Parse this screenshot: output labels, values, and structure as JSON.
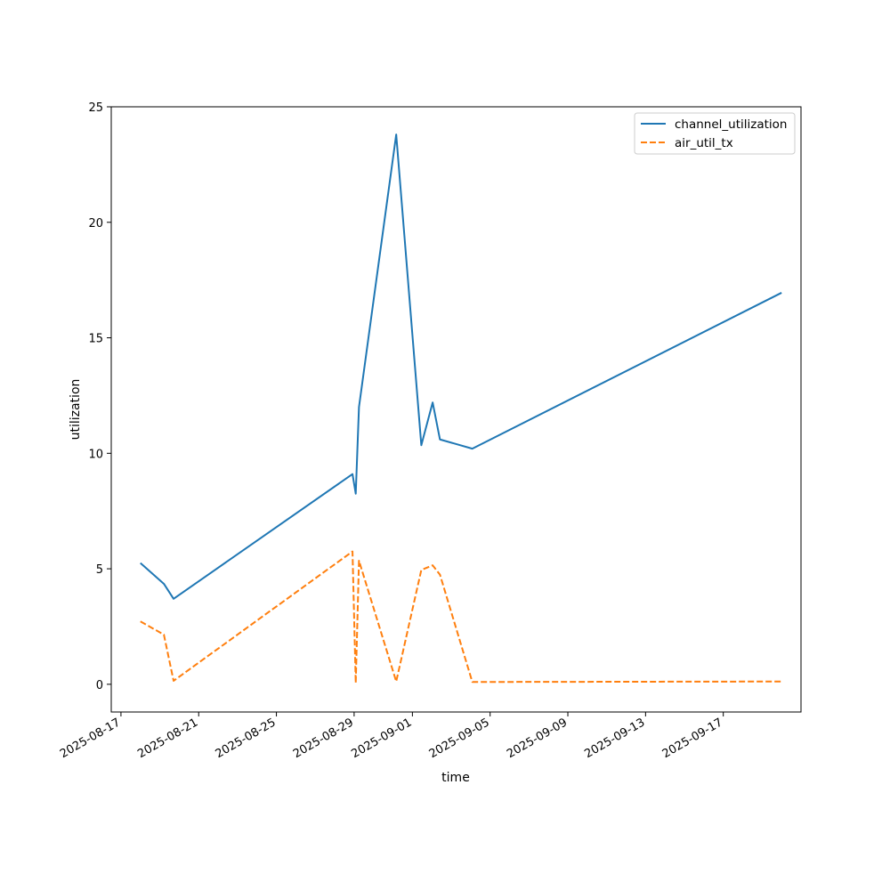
{
  "chart_data": {
    "type": "line",
    "xlabel": "time",
    "ylabel": "utilization",
    "xlim": [
      "2025-08-16T12:00",
      "2025-09-21T00:00"
    ],
    "ylim": [
      -1.2,
      25
    ],
    "x_ticks": [
      "2025-08-17",
      "2025-08-21",
      "2025-08-25",
      "2025-08-29",
      "2025-09-01",
      "2025-09-05",
      "2025-09-09",
      "2025-09-13",
      "2025-09-17"
    ],
    "y_ticks": [
      0,
      5,
      10,
      15,
      20,
      25
    ],
    "legend_position": "top-right",
    "grid": false,
    "series": [
      {
        "name": "channel_utilization",
        "color": "#1f77b4",
        "style": "solid",
        "points": [
          {
            "x": "2025-08-18T00:00",
            "y": 5.25
          },
          {
            "x": "2025-08-19T05:00",
            "y": 4.35
          },
          {
            "x": "2025-08-19T17:00",
            "y": 3.7
          },
          {
            "x": "2025-08-28T22:00",
            "y": 9.1
          },
          {
            "x": "2025-08-29T02:00",
            "y": 8.25
          },
          {
            "x": "2025-08-29T06:00",
            "y": 12.0
          },
          {
            "x": "2025-08-31T04:00",
            "y": 23.8
          },
          {
            "x": "2025-09-01T11:00",
            "y": 10.35
          },
          {
            "x": "2025-09-02T01:00",
            "y": 12.2
          },
          {
            "x": "2025-09-02T10:00",
            "y": 10.6
          },
          {
            "x": "2025-09-04T02:00",
            "y": 10.2
          },
          {
            "x": "2025-09-20T00:00",
            "y": 16.95
          }
        ]
      },
      {
        "name": "air_util_tx",
        "color": "#ff7f0e",
        "style": "dashed",
        "points": [
          {
            "x": "2025-08-18T00:00",
            "y": 2.72
          },
          {
            "x": "2025-08-19T05:00",
            "y": 2.15
          },
          {
            "x": "2025-08-19T17:00",
            "y": 0.15
          },
          {
            "x": "2025-08-28T22:00",
            "y": 5.75
          },
          {
            "x": "2025-08-29T02:00",
            "y": 0.05
          },
          {
            "x": "2025-08-29T06:00",
            "y": 5.35
          },
          {
            "x": "2025-08-31T04:00",
            "y": 0.12
          },
          {
            "x": "2025-09-01T11:00",
            "y": 4.95
          },
          {
            "x": "2025-09-02T01:00",
            "y": 5.15
          },
          {
            "x": "2025-09-02T10:00",
            "y": 4.75
          },
          {
            "x": "2025-09-04T02:00",
            "y": 0.1
          },
          {
            "x": "2025-09-20T00:00",
            "y": 0.12
          }
        ]
      }
    ]
  }
}
